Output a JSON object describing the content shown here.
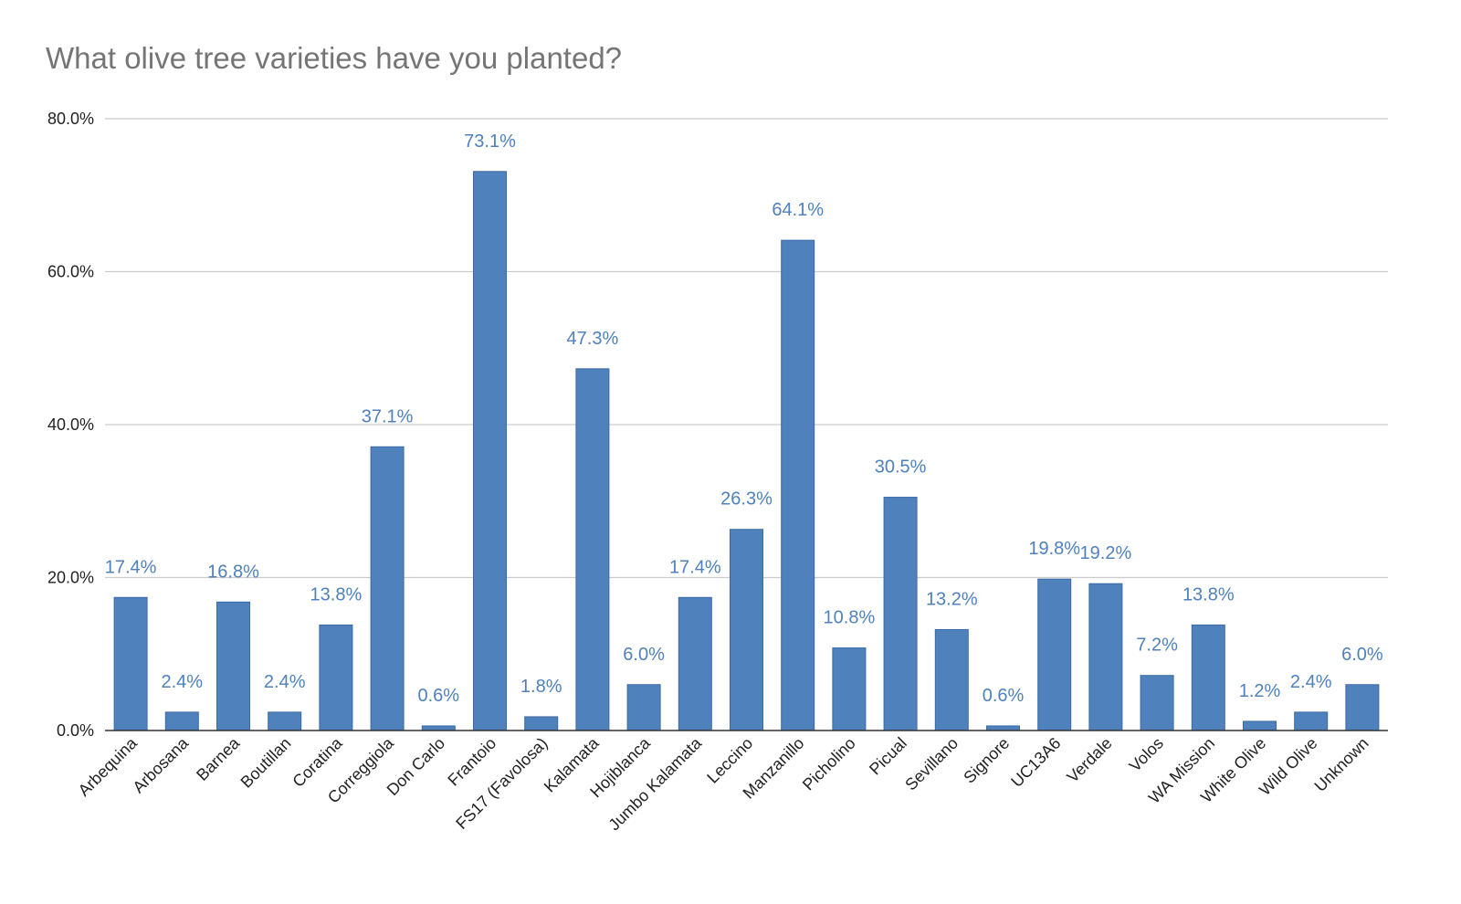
{
  "chart_data": {
    "type": "bar",
    "title": "What olive tree varieties have you planted?",
    "xlabel": "",
    "ylabel": "",
    "ylim": [
      0,
      80
    ],
    "yticks": [
      "0.0%",
      "20.0%",
      "40.0%",
      "60.0%",
      "80.0%"
    ],
    "grid": true,
    "legend": "none",
    "bar_color": "#4f81bd",
    "categories": [
      "Arbequina",
      "Arbosana",
      "Barnea",
      "Boutillan",
      "Coratina",
      "Correggiola",
      "Don Carlo",
      "Frantoio",
      "FS17 (Favolosa)",
      "Kalamata",
      "Hojiblanca",
      "Jumbo Kalamata",
      "Leccino",
      "Manzanillo",
      "Picholino",
      "Picual",
      "Sevillano",
      "Signore",
      "UC13A6",
      "Verdale",
      "Volos",
      "WA Mission",
      "White Olive",
      "Wild Olive",
      "Unknown"
    ],
    "values": [
      17.4,
      2.4,
      16.8,
      2.4,
      13.8,
      37.1,
      0.6,
      73.1,
      1.8,
      47.3,
      6.0,
      17.4,
      26.3,
      64.1,
      10.8,
      30.5,
      13.2,
      0.6,
      19.8,
      19.2,
      7.2,
      13.8,
      1.2,
      2.4,
      6.0
    ],
    "data_labels": [
      "17.4%",
      "2.4%",
      "16.8%",
      "2.4%",
      "13.8%",
      "37.1%",
      "0.6%",
      "73.1%",
      "1.8%",
      "47.3%",
      "6.0%",
      "17.4%",
      "26.3%",
      "64.1%",
      "10.8%",
      "30.5%",
      "13.2%",
      "0.6%",
      "19.8%",
      "19.2%",
      "7.2%",
      "13.8%",
      "1.2%",
      "2.4%",
      "6.0%"
    ]
  }
}
